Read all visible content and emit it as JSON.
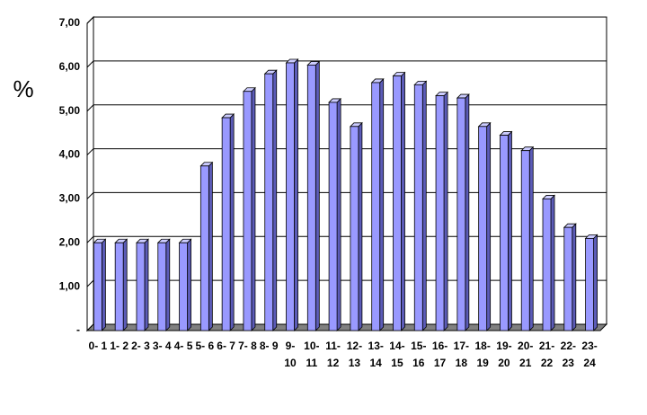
{
  "chart_data": {
    "type": "bar3d",
    "y_label": "%",
    "categories": [
      "0- 1",
      "1- 2",
      "2- 3",
      "3- 4",
      "4- 5",
      "5- 6",
      "6- 7",
      "7- 8",
      "8- 9",
      "9- 10",
      "10- 11",
      "11- 12",
      "12- 13",
      "13- 14",
      "14- 15",
      "15- 16",
      "16- 17",
      "17- 18",
      "18- 19",
      "19- 20",
      "20- 21",
      "21- 22",
      "22- 23",
      "23- 24"
    ],
    "values": [
      2.0,
      2.0,
      2.0,
      2.0,
      2.0,
      3.75,
      4.85,
      5.45,
      5.85,
      6.1,
      6.05,
      5.2,
      4.65,
      5.65,
      5.8,
      5.6,
      5.35,
      5.3,
      4.65,
      4.45,
      4.1,
      3.0,
      2.35,
      2.1
    ],
    "color": "#9999ff",
    "ylim": [
      0,
      7
    ],
    "yticks": [
      {
        "value": 0,
        "label": "-"
      },
      {
        "value": 1,
        "label": "1,00"
      },
      {
        "value": 2,
        "label": "2,00"
      },
      {
        "value": 3,
        "label": "3,00"
      },
      {
        "value": 4,
        "label": "4,00"
      },
      {
        "value": 5,
        "label": "5,00"
      },
      {
        "value": 6,
        "label": "6,00"
      },
      {
        "value": 7,
        "label": "7,00"
      }
    ],
    "grid": true
  }
}
